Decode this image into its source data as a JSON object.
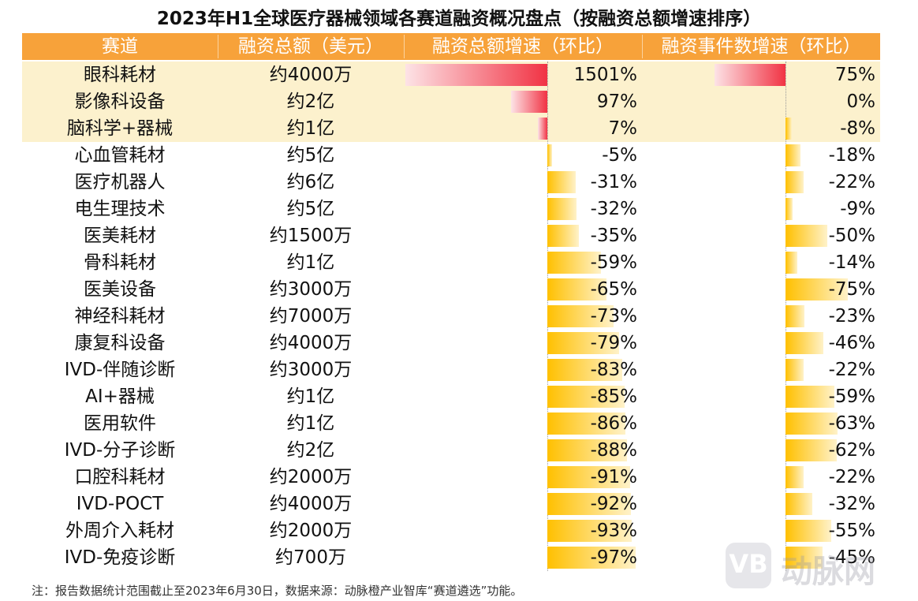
{
  "title": "2023年H1全球医疗器械领域各赛道融资概况盘点（按融资总额增速排序）",
  "headers": [
    "赛道",
    "融资总额（美元）",
    "融资总额增速（环比）",
    "融资事件数增速（环比）"
  ],
  "chart_data": {
    "type": "table",
    "columns": [
      "赛道",
      "融资总额（美元）",
      "融资总额增速（环比）",
      "融资事件数增速（环比）"
    ],
    "rows": [
      {
        "name": "眼科耗材",
        "amount": "约4000万",
        "amount_growth": 1501,
        "amount_growth_label": "1501%",
        "event_growth": 75,
        "event_growth_label": "75%"
      },
      {
        "name": "影像科设备",
        "amount": "约2亿",
        "amount_growth": 97,
        "amount_growth_label": "97%",
        "event_growth": 0,
        "event_growth_label": "0%"
      },
      {
        "name": "脑科学+器械",
        "amount": "约1亿",
        "amount_growth": 7,
        "amount_growth_label": "7%",
        "event_growth": -8,
        "event_growth_label": "-8%"
      },
      {
        "name": "心血管耗材",
        "amount": "约5亿",
        "amount_growth": -5,
        "amount_growth_label": "-5%",
        "event_growth": -18,
        "event_growth_label": "-18%"
      },
      {
        "name": "医疗机器人",
        "amount": "约6亿",
        "amount_growth": -31,
        "amount_growth_label": "-31%",
        "event_growth": -22,
        "event_growth_label": "-22%"
      },
      {
        "name": "电生理技术",
        "amount": "约5亿",
        "amount_growth": -32,
        "amount_growth_label": "-32%",
        "event_growth": -9,
        "event_growth_label": "-9%"
      },
      {
        "name": "医美耗材",
        "amount": "约1500万",
        "amount_growth": -35,
        "amount_growth_label": "-35%",
        "event_growth": -50,
        "event_growth_label": "-50%"
      },
      {
        "name": "骨科耗材",
        "amount": "约1亿",
        "amount_growth": -59,
        "amount_growth_label": "-59%",
        "event_growth": -14,
        "event_growth_label": "-14%"
      },
      {
        "name": "医美设备",
        "amount": "约3000万",
        "amount_growth": -65,
        "amount_growth_label": "-65%",
        "event_growth": -75,
        "event_growth_label": "-75%"
      },
      {
        "name": "神经科耗材",
        "amount": "约7000万",
        "amount_growth": -73,
        "amount_growth_label": "-73%",
        "event_growth": -23,
        "event_growth_label": "-23%"
      },
      {
        "name": "康复科设备",
        "amount": "约4000万",
        "amount_growth": -79,
        "amount_growth_label": "-79%",
        "event_growth": -46,
        "event_growth_label": "-46%"
      },
      {
        "name": "IVD-伴随诊断",
        "amount": "约3000万",
        "amount_growth": -83,
        "amount_growth_label": "-83%",
        "event_growth": -22,
        "event_growth_label": "-22%"
      },
      {
        "name": "AI+器械",
        "amount": "约1亿",
        "amount_growth": -85,
        "amount_growth_label": "-85%",
        "event_growth": -59,
        "event_growth_label": "-59%"
      },
      {
        "name": "医用软件",
        "amount": "约1亿",
        "amount_growth": -86,
        "amount_growth_label": "-86%",
        "event_growth": -63,
        "event_growth_label": "-63%"
      },
      {
        "name": "IVD-分子诊断",
        "amount": "约2亿",
        "amount_growth": -88,
        "amount_growth_label": "-88%",
        "event_growth": -62,
        "event_growth_label": "-62%"
      },
      {
        "name": "口腔科耗材",
        "amount": "约2000万",
        "amount_growth": -91,
        "amount_growth_label": "-91%",
        "event_growth": -22,
        "event_growth_label": "-22%"
      },
      {
        "name": "IVD-POCT",
        "amount": "约4000万",
        "amount_growth": -92,
        "amount_growth_label": "-92%",
        "event_growth": -32,
        "event_growth_label": "-32%"
      },
      {
        "name": "外周介入耗材",
        "amount": "约2000万",
        "amount_growth": -93,
        "amount_growth_label": "-93%",
        "event_growth": -55,
        "event_growth_label": "-55%"
      },
      {
        "name": "IVD-免疫诊断",
        "amount": "约700万",
        "amount_growth": -97,
        "amount_growth_label": "-97%",
        "event_growth": -45,
        "event_growth_label": "-45%"
      }
    ],
    "highlighted_rows": 3,
    "colors": {
      "header": "#F7A23A",
      "highlight": "#FCF1CD",
      "positive_bar": "#F13344",
      "negative_bar": "#FFC000"
    }
  },
  "note": "注：报告数据统计范围截止至2023年6月30日，数据来源：动脉橙产业智库“赛道遴选”功能。",
  "watermark": {
    "glyph": "VB",
    "text": "动脉网"
  }
}
